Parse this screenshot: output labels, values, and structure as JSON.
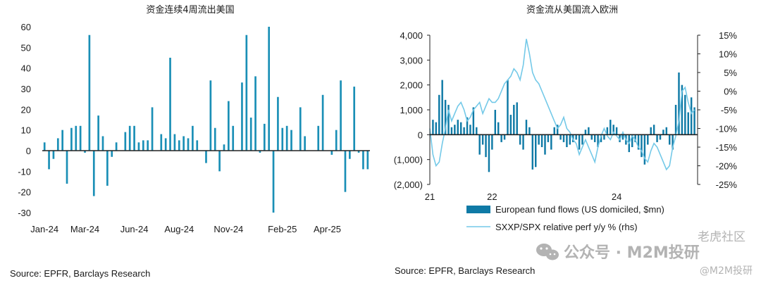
{
  "colors": {
    "bar": "#1a8fb6",
    "bar_right": "#0f7aa6",
    "line": "#74c9e8",
    "axis": "#222222",
    "watermark": "#9a9a9a"
  },
  "watermark": {
    "text1": "老虎社区",
    "text2": "公众号 · M2M投研",
    "text3": "@M2M投研"
  },
  "chart_data": [
    {
      "type": "bar",
      "title": "资金连续4周流出美国",
      "source": "Source: EPFR, Barclays Research",
      "ylim": [
        -30,
        60
      ],
      "yticks": [
        60,
        50,
        40,
        30,
        20,
        10,
        0,
        -10,
        -20,
        -30
      ],
      "ytick_labels": [
        "60",
        "50",
        "40",
        "30",
        "20",
        "10",
        "0",
        "-10",
        "-20",
        "-30"
      ],
      "xtick_labels": [
        "Jan-24",
        "Mar-24",
        "Jun-24",
        "Aug-24",
        "Nov-24",
        "Feb-25",
        "Apr-25"
      ],
      "xtick_index": [
        0,
        9,
        20,
        30,
        41,
        53,
        63
      ],
      "values": [
        4,
        -9,
        -4,
        6,
        10,
        -16,
        11,
        12,
        12,
        -1,
        56,
        -22,
        17,
        7,
        -17,
        -3,
        4,
        0,
        9,
        12,
        12,
        4,
        5,
        5,
        21,
        0,
        8,
        6,
        45,
        8,
        5,
        7,
        6,
        12,
        5,
        0,
        -6,
        34,
        11,
        -10,
        3,
        24,
        12,
        0,
        33,
        56,
        16,
        36,
        -1,
        13,
        60,
        -30,
        26,
        11,
        12,
        10,
        0,
        21,
        7,
        0,
        0,
        12,
        27,
        0,
        -2,
        10,
        34,
        -20,
        -4,
        31,
        -1,
        -9,
        -9
      ]
    },
    {
      "type": "bar",
      "title": "资金流从美国流入欧洲",
      "source": "Source: EPFR, Barclays Research",
      "ylim": [
        -2000,
        4000
      ],
      "yticks": [
        4000,
        3000,
        2000,
        1000,
        0,
        -1000,
        -2000
      ],
      "ytick_labels": [
        "4,000",
        "3,000",
        "2,000",
        "1,000",
        "0",
        "(1,000)",
        "(2,000)"
      ],
      "y2lim": [
        -25,
        15
      ],
      "y2ticks": [
        15,
        10,
        5,
        0,
        -5,
        -10,
        -15,
        -20,
        -25
      ],
      "y2tick_labels": [
        "15%",
        "10%",
        "5%",
        "0%",
        "-5%",
        "-10%",
        "-15%",
        "-20%",
        "-25%"
      ],
      "xtick_labels": [
        "21",
        "22",
        "24"
      ],
      "xtick_year": [
        2021,
        2022,
        2024
      ],
      "xlim_years": [
        2021.0,
        2025.3
      ],
      "series": [
        {
          "name": "European fund flows (US domiciled, $mn)",
          "type": "bar",
          "x": [
            2021.05,
            2021.1,
            2021.15,
            2021.2,
            2021.25,
            2021.3,
            2021.35,
            2021.4,
            2021.45,
            2021.5,
            2021.55,
            2021.6,
            2021.65,
            2021.7,
            2021.75,
            2021.8,
            2021.85,
            2021.9,
            2021.95,
            2022.0,
            2022.05,
            2022.1,
            2022.15,
            2022.2,
            2022.25,
            2022.3,
            2022.35,
            2022.4,
            2022.45,
            2022.5,
            2022.55,
            2022.6,
            2022.65,
            2022.7,
            2022.75,
            2022.8,
            2022.85,
            2022.9,
            2022.95,
            2023.0,
            2023.05,
            2023.1,
            2023.15,
            2023.2,
            2023.25,
            2023.3,
            2023.35,
            2023.4,
            2023.45,
            2023.5,
            2023.55,
            2023.6,
            2023.65,
            2023.7,
            2023.75,
            2023.8,
            2023.85,
            2023.9,
            2023.95,
            2024.0,
            2024.05,
            2024.1,
            2024.15,
            2024.2,
            2024.25,
            2024.3,
            2024.35,
            2024.4,
            2024.45,
            2024.5,
            2024.55,
            2024.6,
            2024.65,
            2024.7,
            2024.75,
            2024.8,
            2024.85,
            2024.9,
            2024.95,
            2025.0,
            2025.05,
            2025.1,
            2025.15,
            2025.2,
            2025.25
          ],
          "values": [
            600,
            500,
            1600,
            2200,
            1400,
            1200,
            300,
            400,
            600,
            500,
            300,
            700,
            400,
            1100,
            300,
            -800,
            -400,
            -900,
            -1500,
            -600,
            1000,
            500,
            -300,
            -200,
            2200,
            800,
            1200,
            1300,
            -400,
            -600,
            600,
            300,
            -1400,
            -1300,
            -400,
            -500,
            -800,
            -300,
            -600,
            300,
            400,
            -200,
            -300,
            -500,
            -400,
            -300,
            -200,
            -600,
            -400,
            200,
            300,
            -200,
            -300,
            -500,
            -300,
            -200,
            300,
            600,
            400,
            300,
            -300,
            -200,
            -400,
            -700,
            -500,
            -300,
            -600,
            -900,
            -1200,
            -400,
            300,
            400,
            -300,
            -200,
            200,
            300,
            -400,
            -600,
            1200,
            2500,
            2000,
            1600,
            900,
            1500,
            1100
          ]
        },
        {
          "name": "SXXP/SPX relative perf y/y % (rhs)",
          "type": "line",
          "x": [
            2021.0,
            2021.05,
            2021.1,
            2021.15,
            2021.2,
            2021.25,
            2021.3,
            2021.35,
            2021.4,
            2021.45,
            2021.5,
            2021.55,
            2021.6,
            2021.65,
            2021.7,
            2021.75,
            2021.8,
            2021.85,
            2021.9,
            2021.95,
            2022.0,
            2022.05,
            2022.1,
            2022.15,
            2022.2,
            2022.25,
            2022.3,
            2022.35,
            2022.4,
            2022.45,
            2022.5,
            2022.55,
            2022.6,
            2022.65,
            2022.7,
            2022.75,
            2022.8,
            2022.85,
            2022.9,
            2022.95,
            2023.0,
            2023.05,
            2023.1,
            2023.15,
            2023.2,
            2023.25,
            2023.3,
            2023.35,
            2023.4,
            2023.45,
            2023.5,
            2023.55,
            2023.6,
            2023.65,
            2023.7,
            2023.75,
            2023.8,
            2023.85,
            2023.9,
            2023.95,
            2024.0,
            2024.05,
            2024.1,
            2024.15,
            2024.2,
            2024.25,
            2024.3,
            2024.35,
            2024.4,
            2024.45,
            2024.5,
            2024.55,
            2024.6,
            2024.65,
            2024.7,
            2024.75,
            2024.8,
            2024.85,
            2024.9,
            2024.95,
            2025.0,
            2025.05,
            2025.1,
            2025.15,
            2025.2,
            2025.25
          ],
          "values": [
            -10,
            -17,
            -20,
            -19,
            -14,
            -10,
            -5,
            -8,
            -6,
            -4,
            -3,
            -5,
            -8,
            -7,
            -5,
            -4,
            -3,
            -6,
            -4,
            -2,
            -3,
            -3,
            -2,
            0,
            2,
            3,
            4,
            6,
            5,
            3,
            7,
            14,
            10,
            5,
            3,
            2,
            0,
            -2,
            -4,
            -6,
            -8,
            -10,
            -9,
            -7,
            -10,
            -11,
            -13,
            -14,
            -17,
            -15,
            -13,
            -15,
            -17,
            -19,
            -15,
            -12,
            -10,
            -12,
            -13,
            -11,
            -12,
            -13,
            -11,
            -13,
            -14,
            -12,
            -13,
            -15,
            -16,
            -18,
            -19,
            -16,
            -14,
            -15,
            -17,
            -19,
            -21,
            -20,
            -15,
            -12,
            -8,
            0,
            1,
            -3,
            -6,
            -5
          ]
        }
      ]
    }
  ]
}
